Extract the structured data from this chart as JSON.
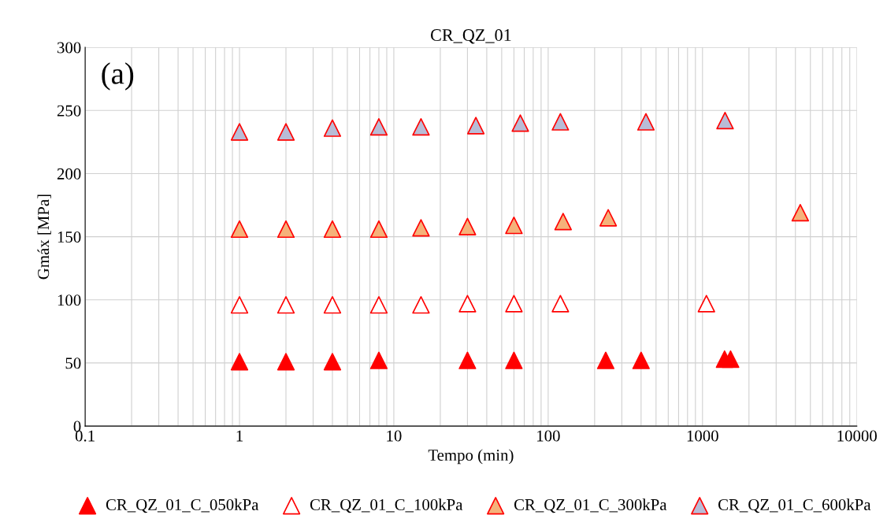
{
  "chart_data": {
    "type": "scatter",
    "title": "CR_QZ_01",
    "xlabel": "Tempo (min)",
    "ylabel": "Gmáx [MPa]",
    "annotations": [
      "(a)"
    ],
    "log": "x",
    "xlim": [
      0.1,
      10000
    ],
    "xticks": [
      0.1,
      1,
      10,
      100,
      1000,
      10000
    ],
    "ylim": [
      0,
      300
    ],
    "yticks": [
      0,
      50,
      100,
      150,
      200,
      250,
      300
    ],
    "grid": true,
    "legend": "bottom",
    "marker": "triangle",
    "series": [
      {
        "name": "CR_QZ_01_C_050kPa",
        "color": "#ff0000",
        "x": [
          1,
          2,
          4,
          8,
          30,
          60,
          236,
          400,
          1390,
          1520
        ],
        "values": [
          51,
          51,
          51,
          52,
          52,
          52,
          52,
          52,
          53,
          53
        ]
      },
      {
        "name": "CR_QZ_01_C_100kPa",
        "color": "#ffffff",
        "x": [
          1,
          2,
          4,
          8,
          15,
          30,
          60,
          120,
          1060
        ],
        "values": [
          96,
          96,
          96,
          96,
          96,
          97,
          97,
          97,
          97
        ]
      },
      {
        "name": "CR_QZ_01_C_300kPa",
        "color": "#f5b27a",
        "x": [
          1,
          2,
          4,
          8,
          15,
          30,
          60,
          125,
          245,
          4300
        ],
        "values": [
          156,
          156,
          156,
          156,
          157,
          158,
          159,
          162,
          165,
          169
        ]
      },
      {
        "name": "CR_QZ_01_C_600kPa",
        "color": "#b8bcd6",
        "x": [
          1,
          2,
          4,
          8,
          15,
          34,
          66,
          120,
          430,
          1400
        ],
        "values": [
          233,
          233,
          236,
          237,
          237,
          238,
          240,
          241,
          241,
          242
        ]
      }
    ]
  }
}
